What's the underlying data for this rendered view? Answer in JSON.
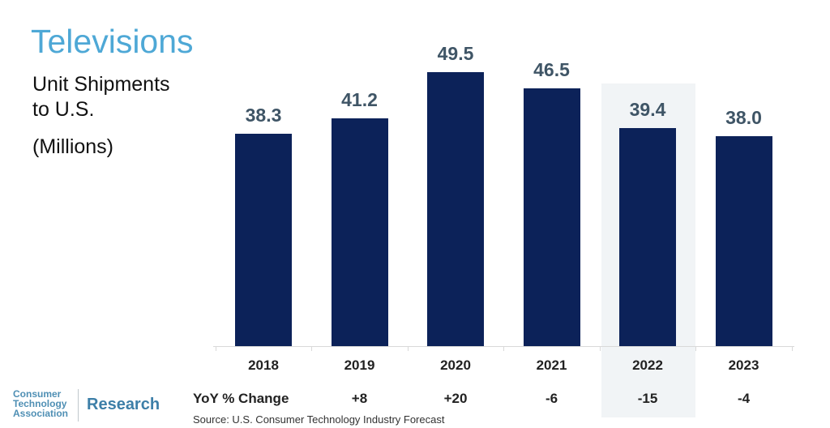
{
  "header": {
    "title": "Televisions",
    "subtitle_line1": "Unit Shipments",
    "subtitle_line2": "to U.S.",
    "units": "(Millions)"
  },
  "colors": {
    "title": "#4ea8d6",
    "bar": "#0c2259",
    "value_label": "#3f5566",
    "highlight_band": "#f1f4f6"
  },
  "chart_data": {
    "type": "bar",
    "title": "Televisions",
    "subtitle": "Unit Shipments to U.S. (Millions)",
    "categories": [
      "2018",
      "2019",
      "2020",
      "2021",
      "2022",
      "2023"
    ],
    "values": [
      38.3,
      41.2,
      49.5,
      46.5,
      39.4,
      38.0
    ],
    "value_labels": [
      "38.3",
      "41.2",
      "49.5",
      "46.5",
      "39.4",
      "38.0"
    ],
    "highlighted_category": "2022",
    "yoy_label": "YoY % Change",
    "yoy_change": [
      "+8",
      "+20",
      "-6",
      "-15",
      "-4"
    ],
    "yoy_categories": [
      "2019",
      "2020",
      "2021",
      "2022",
      "2023"
    ],
    "xlabel": "",
    "ylabel": "Unit Shipments (Millions)",
    "grid": false,
    "legend": null
  },
  "table": {
    "yoy_label": "YoY % Change",
    "yoy": [
      "",
      "+8",
      "+20",
      "-6",
      "-15",
      "-4"
    ]
  },
  "footer": {
    "source": "Source: U.S. Consumer Technology Industry Forecast",
    "logo_line1": "Consumer",
    "logo_line2": "Technology",
    "logo_line3": "Association",
    "logo_research": "Research"
  }
}
